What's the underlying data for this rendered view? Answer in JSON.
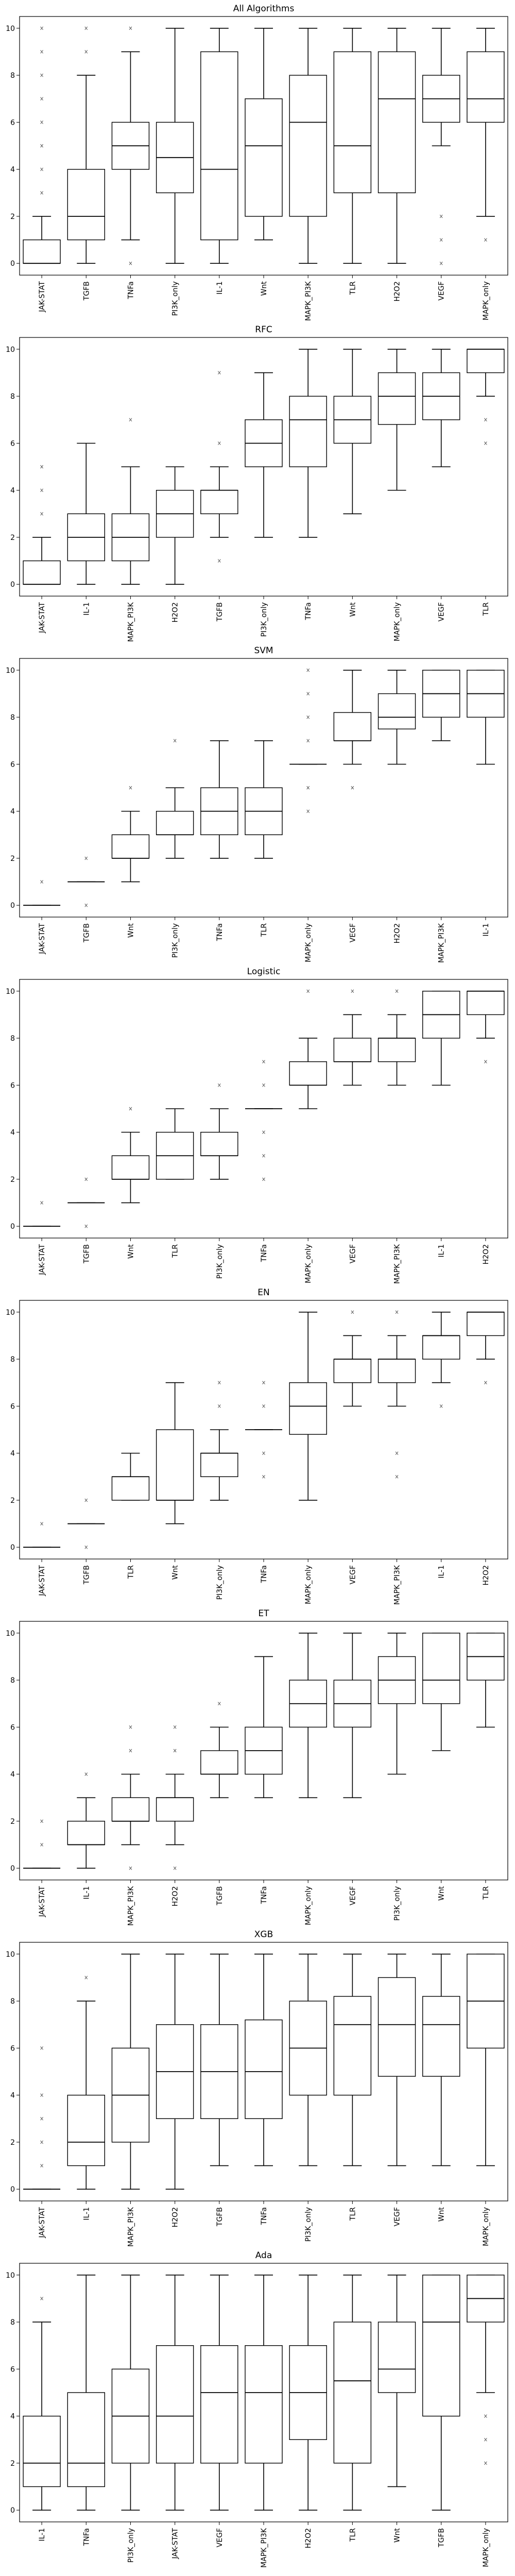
{
  "chart_data": [
    {
      "type": "box",
      "title": "All Algorithms",
      "ylim": [
        -0.5,
        10.5
      ],
      "yticks": [
        0,
        2,
        4,
        6,
        8,
        10
      ],
      "categories": [
        "JAK-STAT",
        "TGFB",
        "TNFa",
        "PI3K_only",
        "IL-1",
        "Wnt",
        "MAPK_PI3K",
        "TLR",
        "H2O2",
        "VEGF",
        "MAPK_only"
      ],
      "boxes": [
        {
          "lw": 0,
          "q1": 0,
          "med": 0,
          "q3": 1,
          "uw": 2,
          "fliers": [
            3,
            4,
            5,
            6,
            7,
            8,
            9,
            10
          ]
        },
        {
          "lw": 0,
          "q1": 1,
          "med": 2,
          "q3": 4,
          "uw": 8,
          "fliers": [
            9,
            10
          ]
        },
        {
          "lw": 1,
          "q1": 4,
          "med": 5,
          "q3": 6,
          "uw": 9,
          "fliers": [
            0,
            10
          ]
        },
        {
          "lw": 0,
          "q1": 3,
          "med": 4.5,
          "q3": 6,
          "uw": 10,
          "fliers": []
        },
        {
          "lw": 0,
          "q1": 1,
          "med": 4,
          "q3": 9,
          "uw": 10,
          "fliers": []
        },
        {
          "lw": 1,
          "q1": 2,
          "med": 5,
          "q3": 7,
          "uw": 10,
          "fliers": []
        },
        {
          "lw": 0,
          "q1": 2,
          "med": 6,
          "q3": 8,
          "uw": 10,
          "fliers": []
        },
        {
          "lw": 0,
          "q1": 3,
          "med": 5,
          "q3": 9,
          "uw": 10,
          "fliers": []
        },
        {
          "lw": 0,
          "q1": 3,
          "med": 7,
          "q3": 9,
          "uw": 10,
          "fliers": []
        },
        {
          "lw": 5,
          "q1": 6,
          "med": 7,
          "q3": 8,
          "uw": 10,
          "fliers": [
            0,
            1,
            2
          ]
        },
        {
          "lw": 2,
          "q1": 6,
          "med": 7,
          "q3": 9,
          "uw": 10,
          "fliers": [
            1
          ]
        }
      ]
    },
    {
      "type": "box",
      "title": "RFC",
      "ylim": [
        -0.5,
        10.5
      ],
      "yticks": [
        0,
        2,
        4,
        6,
        8,
        10
      ],
      "categories": [
        "JAK-STAT",
        "IL-1",
        "MAPK_PI3K",
        "H2O2",
        "TGFB",
        "PI3K_only",
        "TNFa",
        "Wnt",
        "MAPK_only",
        "VEGF",
        "TLR"
      ],
      "boxes": [
        {
          "lw": 0,
          "q1": 0,
          "med": 0,
          "q3": 1,
          "uw": 2,
          "fliers": [
            3,
            4,
            5
          ]
        },
        {
          "lw": 0,
          "q1": 1,
          "med": 2,
          "q3": 3,
          "uw": 6,
          "fliers": []
        },
        {
          "lw": 0,
          "q1": 1,
          "med": 2,
          "q3": 3,
          "uw": 5,
          "fliers": [
            7
          ]
        },
        {
          "lw": 0,
          "q1": 2,
          "med": 3,
          "q3": 4,
          "uw": 5,
          "fliers": []
        },
        {
          "lw": 2,
          "q1": 3,
          "med": 4,
          "q3": 4,
          "uw": 5,
          "fliers": [
            1,
            6,
            9
          ]
        },
        {
          "lw": 2,
          "q1": 5,
          "med": 6,
          "q3": 7,
          "uw": 9,
          "fliers": []
        },
        {
          "lw": 2,
          "q1": 5,
          "med": 7,
          "q3": 8,
          "uw": 10,
          "fliers": []
        },
        {
          "lw": 3,
          "q1": 6,
          "med": 7,
          "q3": 8,
          "uw": 10,
          "fliers": []
        },
        {
          "lw": 4,
          "q1": 6.8,
          "med": 8,
          "q3": 9,
          "uw": 10,
          "fliers": []
        },
        {
          "lw": 5,
          "q1": 7,
          "med": 8,
          "q3": 9,
          "uw": 10,
          "fliers": []
        },
        {
          "lw": 8,
          "q1": 9,
          "med": 10,
          "q3": 10,
          "uw": 10,
          "fliers": [
            6,
            7
          ]
        }
      ]
    },
    {
      "type": "box",
      "title": "SVM",
      "ylim": [
        -0.5,
        10.5
      ],
      "yticks": [
        0,
        2,
        4,
        6,
        8,
        10
      ],
      "categories": [
        "JAK-STAT",
        "TGFB",
        "Wnt",
        "PI3K_only",
        "TNFa",
        "TLR",
        "MAPK_only",
        "VEGF",
        "H2O2",
        "MAPK_PI3K",
        "IL-1"
      ],
      "boxes": [
        {
          "lw": 0,
          "q1": 0,
          "med": 0,
          "q3": 0,
          "uw": 0,
          "fliers": [
            1
          ]
        },
        {
          "lw": 1,
          "q1": 1,
          "med": 1,
          "q3": 1,
          "uw": 1,
          "fliers": [
            0,
            2
          ]
        },
        {
          "lw": 1,
          "q1": 2,
          "med": 2,
          "q3": 3,
          "uw": 4,
          "fliers": [
            5
          ]
        },
        {
          "lw": 2,
          "q1": 3,
          "med": 3,
          "q3": 4,
          "uw": 5,
          "fliers": [
            7
          ]
        },
        {
          "lw": 2,
          "q1": 3,
          "med": 4,
          "q3": 5,
          "uw": 7,
          "fliers": []
        },
        {
          "lw": 2,
          "q1": 3,
          "med": 4,
          "q3": 5,
          "uw": 7,
          "fliers": []
        },
        {
          "lw": 6,
          "q1": 6,
          "med": 6,
          "q3": 6,
          "uw": 6,
          "fliers": [
            4,
            5,
            7,
            8,
            9,
            10
          ]
        },
        {
          "lw": 6,
          "q1": 7,
          "med": 7,
          "q3": 8.2,
          "uw": 10,
          "fliers": [
            5
          ]
        },
        {
          "lw": 6,
          "q1": 7.5,
          "med": 8,
          "q3": 9,
          "uw": 10,
          "fliers": []
        },
        {
          "lw": 7,
          "q1": 8,
          "med": 9,
          "q3": 10,
          "uw": 10,
          "fliers": []
        },
        {
          "lw": 6,
          "q1": 8,
          "med": 9,
          "q3": 10,
          "uw": 10,
          "fliers": []
        }
      ]
    },
    {
      "type": "box",
      "title": "Logistic",
      "ylim": [
        -0.5,
        10.5
      ],
      "yticks": [
        0,
        2,
        4,
        6,
        8,
        10
      ],
      "categories": [
        "JAK-STAT",
        "TGFB",
        "Wnt",
        "TLR",
        "PI3K_only",
        "TNFa",
        "MAPK_only",
        "VEGF",
        "MAPK_PI3K",
        "IL-1",
        "H2O2"
      ],
      "boxes": [
        {
          "lw": 0,
          "q1": 0,
          "med": 0,
          "q3": 0,
          "uw": 0,
          "fliers": [
            1
          ]
        },
        {
          "lw": 1,
          "q1": 1,
          "med": 1,
          "q3": 1,
          "uw": 1,
          "fliers": [
            0,
            2
          ]
        },
        {
          "lw": 1,
          "q1": 2,
          "med": 2,
          "q3": 3,
          "uw": 4,
          "fliers": [
            5
          ]
        },
        {
          "lw": 2,
          "q1": 2,
          "med": 3,
          "q3": 4,
          "uw": 5,
          "fliers": []
        },
        {
          "lw": 2,
          "q1": 3,
          "med": 3,
          "q3": 4,
          "uw": 5,
          "fliers": [
            6
          ]
        },
        {
          "lw": 5,
          "q1": 5,
          "med": 5,
          "q3": 5,
          "uw": 5,
          "fliers": [
            2,
            3,
            4,
            6,
            7
          ]
        },
        {
          "lw": 5,
          "q1": 6,
          "med": 6,
          "q3": 7,
          "uw": 8,
          "fliers": [
            10
          ]
        },
        {
          "lw": 6,
          "q1": 7,
          "med": 7,
          "q3": 8,
          "uw": 9,
          "fliers": [
            10
          ]
        },
        {
          "lw": 6,
          "q1": 7,
          "med": 8,
          "q3": 8,
          "uw": 9,
          "fliers": [
            10
          ]
        },
        {
          "lw": 6,
          "q1": 8,
          "med": 9,
          "q3": 10,
          "uw": 10,
          "fliers": []
        },
        {
          "lw": 8,
          "q1": 9,
          "med": 10,
          "q3": 10,
          "uw": 10,
          "fliers": [
            7
          ]
        }
      ]
    },
    {
      "type": "box",
      "title": "EN",
      "ylim": [
        -0.5,
        10.5
      ],
      "yticks": [
        0,
        2,
        4,
        6,
        8,
        10
      ],
      "categories": [
        "JAK-STAT",
        "TGFB",
        "TLR",
        "Wnt",
        "PI3K_only",
        "TNFa",
        "MAPK_only",
        "VEGF",
        "MAPK_PI3K",
        "IL-1",
        "H2O2"
      ],
      "boxes": [
        {
          "lw": 0,
          "q1": 0,
          "med": 0,
          "q3": 0,
          "uw": 0,
          "fliers": [
            1
          ]
        },
        {
          "lw": 1,
          "q1": 1,
          "med": 1,
          "q3": 1,
          "uw": 1,
          "fliers": [
            0,
            2
          ]
        },
        {
          "lw": 2,
          "q1": 2,
          "med": 3,
          "q3": 3,
          "uw": 4,
          "fliers": []
        },
        {
          "lw": 1,
          "q1": 2,
          "med": 2,
          "q3": 5,
          "uw": 7,
          "fliers": []
        },
        {
          "lw": 2,
          "q1": 3,
          "med": 4,
          "q3": 4,
          "uw": 5,
          "fliers": [
            6,
            7
          ]
        },
        {
          "lw": 5,
          "q1": 5,
          "med": 5,
          "q3": 5,
          "uw": 5,
          "fliers": [
            3,
            4,
            6,
            7
          ]
        },
        {
          "lw": 2,
          "q1": 4.8,
          "med": 6,
          "q3": 7,
          "uw": 10,
          "fliers": []
        },
        {
          "lw": 6,
          "q1": 7,
          "med": 8,
          "q3": 8,
          "uw": 9,
          "fliers": [
            10
          ]
        },
        {
          "lw": 6,
          "q1": 7,
          "med": 8,
          "q3": 8,
          "uw": 9,
          "fliers": [
            3,
            4,
            10
          ]
        },
        {
          "lw": 7,
          "q1": 8,
          "med": 9,
          "q3": 9,
          "uw": 10,
          "fliers": [
            6
          ]
        },
        {
          "lw": 8,
          "q1": 9,
          "med": 10,
          "q3": 10,
          "uw": 10,
          "fliers": [
            7
          ]
        }
      ]
    },
    {
      "type": "box",
      "title": "ET",
      "ylim": [
        -0.5,
        10.5
      ],
      "yticks": [
        0,
        2,
        4,
        6,
        8,
        10
      ],
      "categories": [
        "JAK-STAT",
        "IL-1",
        "MAPK_PI3K",
        "H2O2",
        "TGFB",
        "TNFa",
        "MAPK_only",
        "VEGF",
        "PI3K_only",
        "Wnt",
        "TLR"
      ],
      "boxes": [
        {
          "lw": 0,
          "q1": 0,
          "med": 0,
          "q3": 0,
          "uw": 0,
          "fliers": [
            1,
            2
          ]
        },
        {
          "lw": 0,
          "q1": 1,
          "med": 1,
          "q3": 2,
          "uw": 3,
          "fliers": [
            4
          ]
        },
        {
          "lw": 1,
          "q1": 2,
          "med": 2,
          "q3": 3,
          "uw": 4,
          "fliers": [
            0,
            5,
            6
          ]
        },
        {
          "lw": 1,
          "q1": 2,
          "med": 3,
          "q3": 3,
          "uw": 4,
          "fliers": [
            0,
            5,
            6
          ]
        },
        {
          "lw": 3,
          "q1": 4,
          "med": 4,
          "q3": 5,
          "uw": 6,
          "fliers": [
            7
          ]
        },
        {
          "lw": 3,
          "q1": 4,
          "med": 5,
          "q3": 6,
          "uw": 9,
          "fliers": []
        },
        {
          "lw": 3,
          "q1": 6,
          "med": 7,
          "q3": 8,
          "uw": 10,
          "fliers": []
        },
        {
          "lw": 3,
          "q1": 6,
          "med": 7,
          "q3": 8,
          "uw": 10,
          "fliers": []
        },
        {
          "lw": 4,
          "q1": 7,
          "med": 8,
          "q3": 9,
          "uw": 10,
          "fliers": []
        },
        {
          "lw": 5,
          "q1": 7,
          "med": 8,
          "q3": 10,
          "uw": 10,
          "fliers": []
        },
        {
          "lw": 6,
          "q1": 8,
          "med": 9,
          "q3": 10,
          "uw": 10,
          "fliers": []
        }
      ]
    },
    {
      "type": "box",
      "title": "XGB",
      "ylim": [
        -0.5,
        10.5
      ],
      "yticks": [
        0,
        2,
        4,
        6,
        8,
        10
      ],
      "categories": [
        "JAK-STAT",
        "IL-1",
        "MAPK_PI3K",
        "H2O2",
        "TGFB",
        "TNFa",
        "PI3K_only",
        "TLR",
        "VEGF",
        "Wnt",
        "MAPK_only"
      ],
      "boxes": [
        {
          "lw": 0,
          "q1": 0,
          "med": 0,
          "q3": 0,
          "uw": 0,
          "fliers": [
            1,
            2,
            3,
            4,
            6
          ]
        },
        {
          "lw": 0,
          "q1": 1,
          "med": 2,
          "q3": 4,
          "uw": 8,
          "fliers": [
            9
          ]
        },
        {
          "lw": 0,
          "q1": 2,
          "med": 4,
          "q3": 6,
          "uw": 10,
          "fliers": []
        },
        {
          "lw": 0,
          "q1": 3,
          "med": 5,
          "q3": 7,
          "uw": 10,
          "fliers": []
        },
        {
          "lw": 1,
          "q1": 3,
          "med": 5,
          "q3": 7,
          "uw": 10,
          "fliers": []
        },
        {
          "lw": 1,
          "q1": 3,
          "med": 5,
          "q3": 7.2,
          "uw": 10,
          "fliers": []
        },
        {
          "lw": 1,
          "q1": 4,
          "med": 6,
          "q3": 8,
          "uw": 10,
          "fliers": []
        },
        {
          "lw": 1,
          "q1": 4,
          "med": 7,
          "q3": 8.2,
          "uw": 10,
          "fliers": []
        },
        {
          "lw": 1,
          "q1": 4.8,
          "med": 7,
          "q3": 9,
          "uw": 10,
          "fliers": []
        },
        {
          "lw": 1,
          "q1": 4.8,
          "med": 7,
          "q3": 8.2,
          "uw": 10,
          "fliers": []
        },
        {
          "lw": 1,
          "q1": 6,
          "med": 8,
          "q3": 10,
          "uw": 10,
          "fliers": []
        }
      ]
    },
    {
      "type": "box",
      "title": "Ada",
      "ylim": [
        -0.5,
        10.5
      ],
      "yticks": [
        0,
        2,
        4,
        6,
        8,
        10
      ],
      "categories": [
        "IL-1",
        "TNFa",
        "PI3K_only",
        "JAK-STAT",
        "VEGF",
        "MAPK_PI3K",
        "H2O2",
        "TLR",
        "Wnt",
        "TGFB",
        "MAPK_only"
      ],
      "boxes": [
        {
          "lw": 0,
          "q1": 1,
          "med": 2,
          "q3": 4,
          "uw": 8,
          "fliers": [
            9
          ]
        },
        {
          "lw": 0,
          "q1": 1,
          "med": 2,
          "q3": 5,
          "uw": 10,
          "fliers": []
        },
        {
          "lw": 0,
          "q1": 2,
          "med": 4,
          "q3": 6,
          "uw": 10,
          "fliers": []
        },
        {
          "lw": 0,
          "q1": 2,
          "med": 4,
          "q3": 7,
          "uw": 10,
          "fliers": []
        },
        {
          "lw": 0,
          "q1": 2,
          "med": 5,
          "q3": 7,
          "uw": 10,
          "fliers": []
        },
        {
          "lw": 0,
          "q1": 2,
          "med": 5,
          "q3": 7,
          "uw": 10,
          "fliers": []
        },
        {
          "lw": 0,
          "q1": 3,
          "med": 5,
          "q3": 7,
          "uw": 10,
          "fliers": []
        },
        {
          "lw": 0,
          "q1": 2,
          "med": 5.5,
          "q3": 8,
          "uw": 10,
          "fliers": []
        },
        {
          "lw": 1,
          "q1": 5,
          "med": 6,
          "q3": 8,
          "uw": 10,
          "fliers": []
        },
        {
          "lw": 0,
          "q1": 4,
          "med": 8,
          "q3": 10,
          "uw": 10,
          "fliers": []
        },
        {
          "lw": 5,
          "q1": 8,
          "med": 9,
          "q3": 10,
          "uw": 10,
          "fliers": [
            2,
            3,
            4
          ]
        }
      ]
    }
  ]
}
